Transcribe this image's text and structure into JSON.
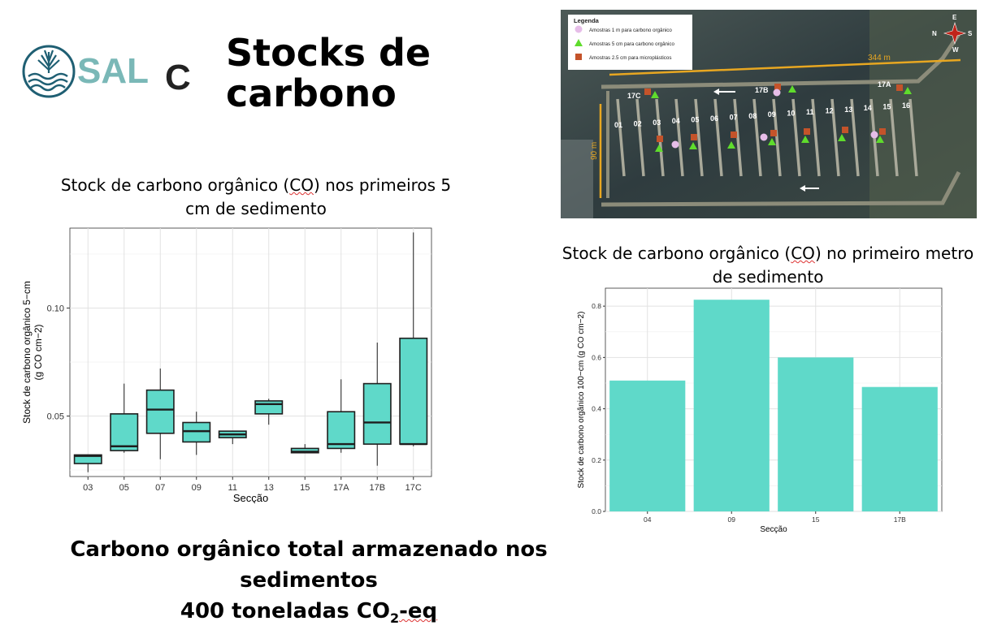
{
  "header": {
    "title": "Stocks de\ncarbono",
    "logo_text_a": "SAL",
    "logo_text_b": "C"
  },
  "map": {
    "legend_title": "Legenda",
    "legend_items": [
      {
        "label": "Amostras 1 m para carbono orgânico",
        "color": "#e6bde8",
        "shape": "circle"
      },
      {
        "label": "Amostras 5 cm para carbono orgânico",
        "color": "#5fdc2c",
        "shape": "triangle"
      },
      {
        "label": "Amostras 2.5 cm para microplásticos",
        "color": "#c4532a",
        "shape": "square"
      }
    ],
    "compass": {
      "n": "N",
      "s": "S",
      "e": "E",
      "w": "W"
    },
    "length_label": "344 m",
    "width_label": "90 m",
    "section_labels": [
      "01",
      "02",
      "03",
      "04",
      "05",
      "06",
      "07",
      "08",
      "09",
      "10",
      "11",
      "12",
      "13",
      "14",
      "15",
      "16"
    ],
    "group_labels": [
      "17C",
      "17B",
      "17A"
    ]
  },
  "boxplot": {
    "title_part1": "Stock de carbono orgânico (",
    "title_co": "CO",
    "title_part2": ") nos primeiros 5 cm de sedimento"
  },
  "barchart": {
    "title_part1": "Stock de carbono orgânico (",
    "title_co": "CO",
    "title_part2": ") no primeiro metro de sedimento"
  },
  "footer": {
    "line1": "Carbono orgânico total armazenado nos sedimentos",
    "line2_pre": "400 toneladas CO",
    "line2_sub": "2",
    "line2_post": "-eq"
  },
  "chart_data": [
    {
      "type": "box",
      "xlabel": "Secção",
      "ylabel": "Stock de carbono orgânico 5−cm (g CO cm−2)",
      "ylim": [
        0.022,
        0.137
      ],
      "yticks": [
        0.05,
        0.1
      ],
      "ytick_labels": [
        "0.05",
        "0.10"
      ],
      "grid": true,
      "categories": [
        "03",
        "05",
        "07",
        "09",
        "11",
        "13",
        "15",
        "17A",
        "17B",
        "17C"
      ],
      "boxes": [
        {
          "min": 0.024,
          "q1": 0.028,
          "median": 0.0315,
          "q3": 0.032,
          "max": 0.032
        },
        {
          "min": 0.033,
          "q1": 0.034,
          "median": 0.036,
          "q3": 0.051,
          "max": 0.065
        },
        {
          "min": 0.03,
          "q1": 0.042,
          "median": 0.053,
          "q3": 0.062,
          "max": 0.072
        },
        {
          "min": 0.032,
          "q1": 0.038,
          "median": 0.043,
          "q3": 0.047,
          "max": 0.052
        },
        {
          "min": 0.037,
          "q1": 0.04,
          "median": 0.0415,
          "q3": 0.043,
          "max": 0.043
        },
        {
          "min": 0.046,
          "q1": 0.051,
          "median": 0.0555,
          "q3": 0.057,
          "max": 0.058
        },
        {
          "min": 0.033,
          "q1": 0.033,
          "median": 0.0335,
          "q3": 0.035,
          "max": 0.037
        },
        {
          "min": 0.033,
          "q1": 0.035,
          "median": 0.037,
          "q3": 0.052,
          "max": 0.067
        },
        {
          "min": 0.027,
          "q1": 0.037,
          "median": 0.047,
          "q3": 0.065,
          "max": 0.084
        },
        {
          "min": 0.036,
          "q1": 0.037,
          "median": 0.037,
          "q3": 0.086,
          "max": 0.135
        }
      ],
      "fill": "#5fd9c9",
      "stroke": "#1e1e1e"
    },
    {
      "type": "bar",
      "xlabel": "Secção",
      "ylabel": "Stock de carbono orgânico 100−cm (g CO cm−2)",
      "categories": [
        "04",
        "09",
        "15",
        "17B"
      ],
      "values": [
        0.51,
        0.825,
        0.6,
        0.485
      ],
      "ylim": [
        0,
        0.87
      ],
      "yticks": [
        0.0,
        0.2,
        0.4,
        0.6,
        0.8
      ],
      "ytick_labels": [
        "0.0",
        "0.2",
        "0.4",
        "0.6",
        "0.8"
      ],
      "grid": true,
      "fill": "#5fd9c9"
    }
  ]
}
